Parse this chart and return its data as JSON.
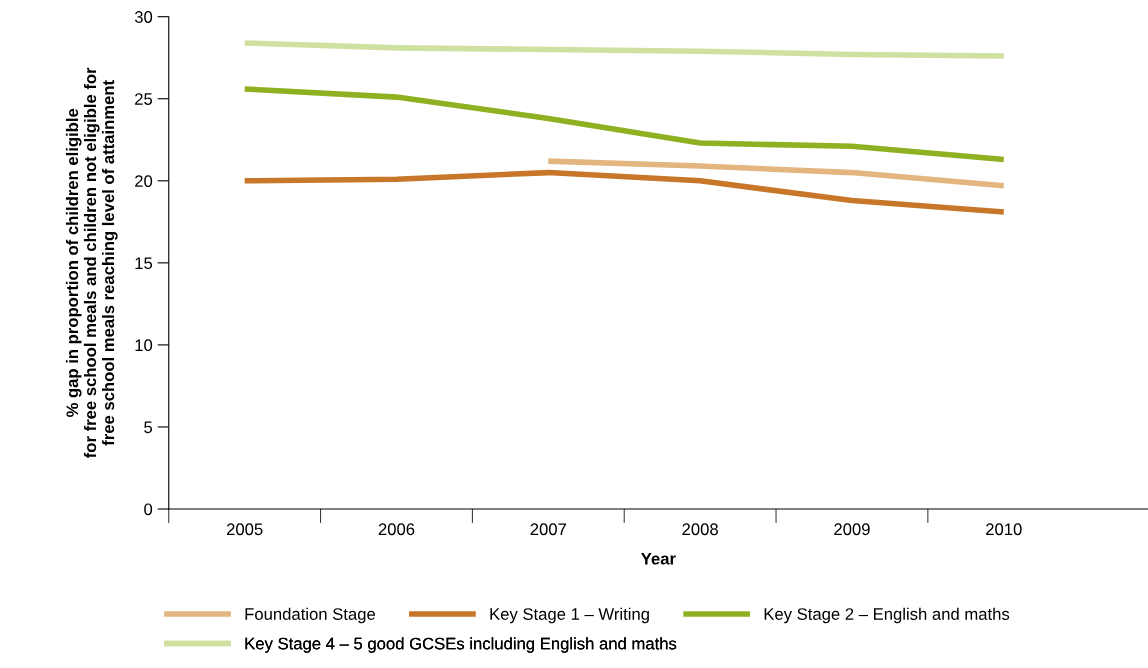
{
  "chart_data": {
    "type": "line",
    "categories": [
      "2005",
      "2006",
      "2007",
      "2008",
      "2009",
      "2010"
    ],
    "xlabel": "Year",
    "ylabel": "% gap in proportion of children eligible\nfor free school meals and children not eligible for\nfree school meals reaching level of attainment",
    "ylim": [
      0,
      30
    ],
    "yticks": [
      0,
      5,
      10,
      15,
      20,
      25,
      30
    ],
    "grid": false,
    "legend": "bottom",
    "marker": "none",
    "line_style": "solid",
    "series": [
      {
        "name": "Foundation Stage",
        "color": "#e3b57f",
        "values": [
          null,
          null,
          21.2,
          20.9,
          20.5,
          19.7
        ]
      },
      {
        "name": "Key Stage 1 – Writing",
        "color": "#c8762a",
        "values": [
          20.0,
          20.1,
          20.5,
          20.0,
          18.8,
          18.1
        ]
      },
      {
        "name": "Key Stage 2 – English and maths",
        "color": "#8fb020",
        "values": [
          25.6,
          25.1,
          23.8,
          22.3,
          22.1,
          21.3
        ]
      },
      {
        "name": "Key Stage 4 – 5 good GCSEs including English and maths",
        "color": "#cfe0a0",
        "values": [
          28.4,
          28.1,
          28.0,
          27.9,
          27.7,
          27.6
        ]
      }
    ]
  }
}
